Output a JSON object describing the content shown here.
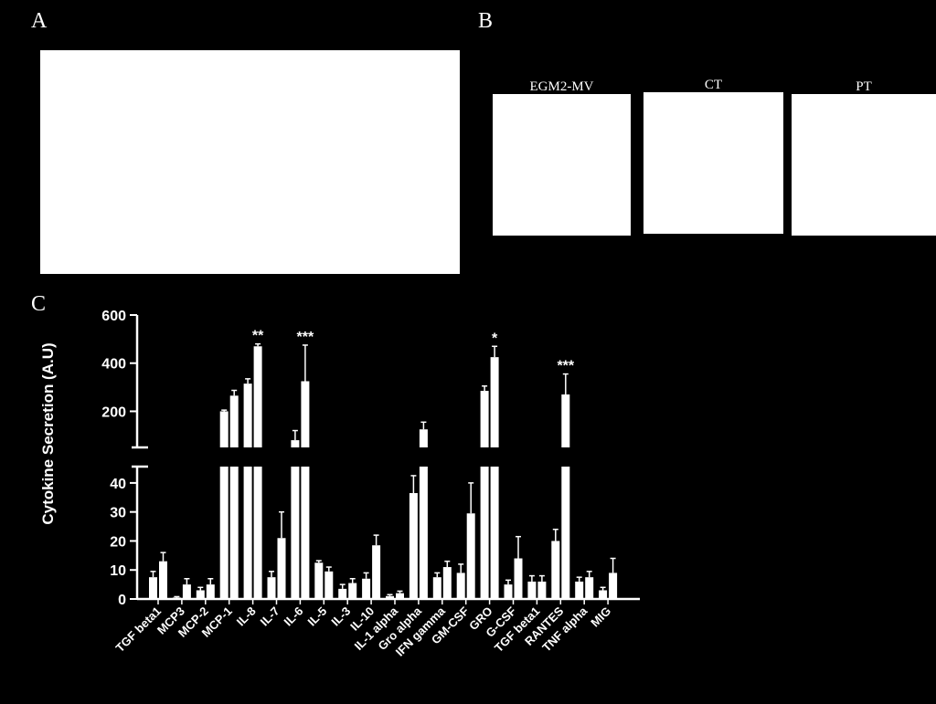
{
  "panels": {
    "a": {
      "letter": "A"
    },
    "b": {
      "letter": "B",
      "labels": [
        "EGM2-MV",
        "CT",
        "PT"
      ]
    },
    "c": {
      "letter": "C"
    }
  },
  "colors": {
    "background": "#000000",
    "foreground": "#ffffff"
  },
  "chart_data": {
    "type": "bar",
    "ylabel": "Cytokine Secretion (A.U)",
    "xlabel": "",
    "y_axis_break": true,
    "lower_segment": {
      "ylim": [
        0,
        45
      ],
      "ticks": [
        0,
        10,
        20,
        30,
        40
      ]
    },
    "upper_segment": {
      "ylim": [
        50,
        600
      ],
      "ticks": [
        200,
        400,
        600
      ]
    },
    "categories": [
      "TGF beta1",
      "MCP3",
      "MCP-2",
      "MCP-1",
      "IL-8",
      "IL-7",
      "IL-6",
      "IL-5",
      "IL-3",
      "IL-10",
      "IL-1 alpha",
      "Gro alpha",
      "IFN gamma",
      "GM-CSF",
      "GRO",
      "G-CSF",
      "TGF beta1",
      "RANTES",
      "TNF alpha",
      "MIG"
    ],
    "series": [
      {
        "values": [
          7.5,
          0.5,
          3,
          200,
          315,
          7.5,
          80,
          12.5,
          3.5,
          7,
          1,
          36.5,
          7.5,
          9,
          285,
          5,
          6,
          20,
          6,
          3
        ],
        "errors": [
          2,
          0.3,
          1,
          5,
          20,
          2,
          40,
          0.7,
          1.5,
          2,
          0.5,
          6,
          1.5,
          3,
          20,
          1.5,
          2,
          4,
          1.5,
          1
        ]
      },
      {
        "values": [
          13,
          5,
          5,
          265,
          470,
          21,
          325,
          9.5,
          5.5,
          18.5,
          2,
          125,
          11,
          29.5,
          425,
          14,
          6,
          270,
          7.5,
          9
        ],
        "errors": [
          3,
          2,
          2,
          22,
          10,
          9,
          150,
          1.5,
          1.5,
          3.5,
          0.7,
          30,
          2,
          10.5,
          45,
          7.5,
          2,
          85,
          2,
          5
        ]
      }
    ],
    "annotations": [
      {
        "category": "IL-8",
        "text": "**"
      },
      {
        "category": "IL-6",
        "text": "***"
      },
      {
        "category": "GRO",
        "text": "*"
      },
      {
        "category": "RANTES",
        "text": "***"
      }
    ]
  }
}
